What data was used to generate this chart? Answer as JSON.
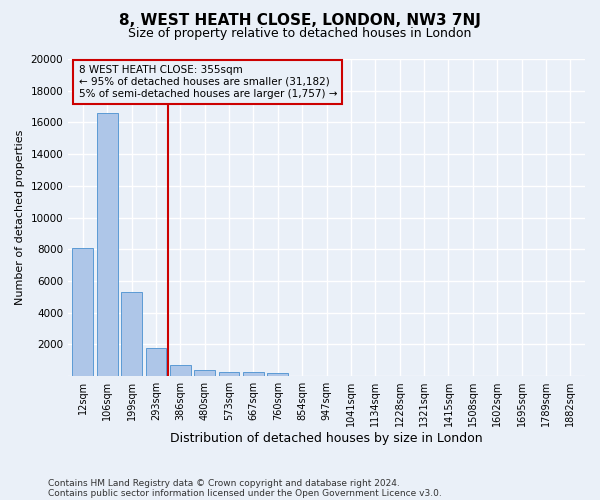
{
  "title": "8, WEST HEATH CLOSE, LONDON, NW3 7NJ",
  "subtitle": "Size of property relative to detached houses in London",
  "xlabel": "Distribution of detached houses by size in London",
  "ylabel": "Number of detached properties",
  "footnote1": "Contains HM Land Registry data © Crown copyright and database right 2024.",
  "footnote2": "Contains public sector information licensed under the Open Government Licence v3.0.",
  "categories": [
    "12sqm",
    "106sqm",
    "199sqm",
    "293sqm",
    "386sqm",
    "480sqm",
    "573sqm",
    "667sqm",
    "760sqm",
    "854sqm",
    "947sqm",
    "1041sqm",
    "1134sqm",
    "1228sqm",
    "1321sqm",
    "1415sqm",
    "1508sqm",
    "1602sqm",
    "1695sqm",
    "1789sqm",
    "1882sqm"
  ],
  "values": [
    8100,
    16600,
    5300,
    1750,
    700,
    380,
    280,
    230,
    190,
    0,
    0,
    0,
    0,
    0,
    0,
    0,
    0,
    0,
    0,
    0,
    0
  ],
  "bar_color": "#aec6e8",
  "bar_edgecolor": "#5b9bd5",
  "bg_color": "#eaf0f8",
  "grid_color": "#ffffff",
  "vline_color": "#cc0000",
  "annotation_text": "8 WEST HEATH CLOSE: 355sqm\n← 95% of detached houses are smaller (31,182)\n5% of semi-detached houses are larger (1,757) →",
  "annotation_box_color": "#cc0000",
  "ylim": [
    0,
    20000
  ],
  "yticks": [
    0,
    2000,
    4000,
    6000,
    8000,
    10000,
    12000,
    14000,
    16000,
    18000,
    20000
  ],
  "title_fontsize": 11,
  "subtitle_fontsize": 9,
  "ylabel_fontsize": 8,
  "xlabel_fontsize": 9,
  "tick_fontsize": 7.5,
  "annot_fontsize": 7.5,
  "footnote_fontsize": 6.5
}
